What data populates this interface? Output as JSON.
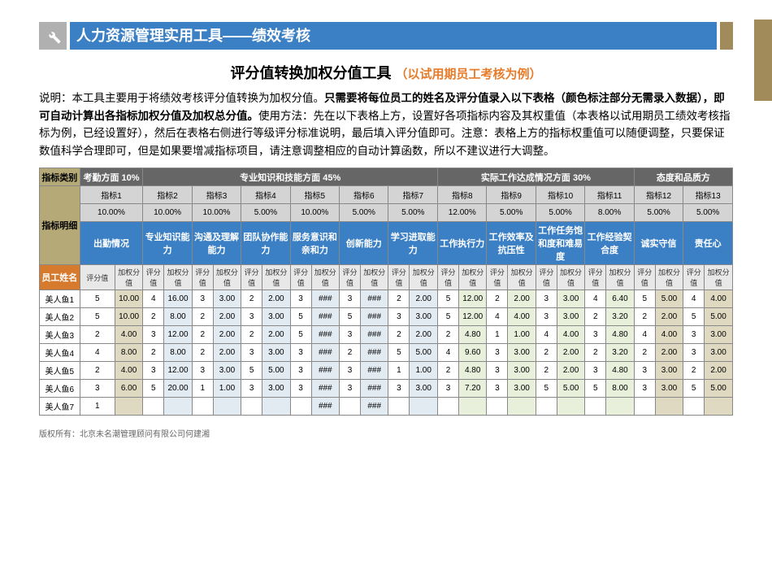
{
  "header": {
    "title": "人力资源管理实用工具——绩效考核",
    "subtitle_main": "评分值转换加权分值工具",
    "subtitle_note": "（以试用期员工考核为例）"
  },
  "description": {
    "prefix": "说明：本工具主要用于将绩效考核评分值转换为加权分值。",
    "bold": "只需要将每位员工的姓名及评分值录入以下表格（颜色标注部分无需录入数据），即可自动计算出各指标加权分值及加权总分值。",
    "suffix": "使用方法：先在以下表格上方，设置好各项指标内容及其权重值（本表格以试用期员工绩效考核指标为例，已经设置好），然后在表格右侧进行等级评分标准说明，最后填入评分值即可。注意：表格上方的指标权重值可以随便调整，只要保证数值科学合理即可，但是如果要增减指标项目，请注意调整相应的自动计算函数，所以不建议进行大调整。"
  },
  "groups": [
    {
      "label": "考勤方面 10%",
      "span": 2
    },
    {
      "label": "专业知识和技能方面 45%",
      "span": 12
    },
    {
      "label": "实际工作达成情况方面  30%",
      "span": 8
    },
    {
      "label": "态度和品质方",
      "span": 4
    }
  ],
  "row_labels": {
    "category": "指标类别",
    "detail": "指标明细",
    "name": "员工姓名"
  },
  "indicators": [
    {
      "code": "指标1",
      "weight": "10.00%",
      "name": "出勤情况"
    },
    {
      "code": "指标2",
      "weight": "10.00%",
      "name": "专业知识能力"
    },
    {
      "code": "指标3",
      "weight": "10.00%",
      "name": "沟通及理解能力"
    },
    {
      "code": "指标4",
      "weight": "5.00%",
      "name": "团队协作能力"
    },
    {
      "code": "指标5",
      "weight": "10.00%",
      "name": "服务意识和亲和力"
    },
    {
      "code": "指标6",
      "weight": "5.00%",
      "name": "创新能力"
    },
    {
      "code": "指标7",
      "weight": "5.00%",
      "name": "学习进取能力"
    },
    {
      "code": "指标8",
      "weight": "12.00%",
      "name": "工作执行力"
    },
    {
      "code": "指标9",
      "weight": "5.00%",
      "name": "工作效率及抗压性"
    },
    {
      "code": "指标10",
      "weight": "5.00%",
      "name": "工作任务饱和度和难易度"
    },
    {
      "code": "指标11",
      "weight": "8.00%",
      "name": "工作经验契合度"
    },
    {
      "code": "指标12",
      "weight": "5.00%",
      "name": "诚实守信"
    },
    {
      "code": "指标13",
      "weight": "5.00%",
      "name": "责任心"
    }
  ],
  "sub": {
    "score": "评分值",
    "weighted": "加权分值"
  },
  "employees": [
    {
      "name": "美人鱼1",
      "cells": [
        [
          "5",
          "10.00"
        ],
        [
          "4",
          "16.00"
        ],
        [
          "3",
          "3.00"
        ],
        [
          "2",
          "2.00"
        ],
        [
          "3",
          "###"
        ],
        [
          "3",
          "###"
        ],
        [
          "2",
          "2.00"
        ],
        [
          "5",
          "12.00"
        ],
        [
          "2",
          "2.00"
        ],
        [
          "3",
          "3.00"
        ],
        [
          "4",
          "6.40"
        ],
        [
          "5",
          "5.00"
        ],
        [
          "4",
          "4.00"
        ]
      ]
    },
    {
      "name": "美人鱼2",
      "cells": [
        [
          "5",
          "10.00"
        ],
        [
          "2",
          "8.00"
        ],
        [
          "2",
          "2.00"
        ],
        [
          "3",
          "3.00"
        ],
        [
          "5",
          "###"
        ],
        [
          "5",
          "###"
        ],
        [
          "3",
          "3.00"
        ],
        [
          "5",
          "12.00"
        ],
        [
          "4",
          "4.00"
        ],
        [
          "3",
          "3.00"
        ],
        [
          "2",
          "3.20"
        ],
        [
          "2",
          "2.00"
        ],
        [
          "5",
          "5.00"
        ]
      ]
    },
    {
      "name": "美人鱼3",
      "cells": [
        [
          "2",
          "4.00"
        ],
        [
          "3",
          "12.00"
        ],
        [
          "2",
          "2.00"
        ],
        [
          "2",
          "2.00"
        ],
        [
          "5",
          "###"
        ],
        [
          "3",
          "###"
        ],
        [
          "2",
          "2.00"
        ],
        [
          "2",
          "4.80"
        ],
        [
          "1",
          "1.00"
        ],
        [
          "4",
          "4.00"
        ],
        [
          "3",
          "4.80"
        ],
        [
          "4",
          "4.00"
        ],
        [
          "3",
          "3.00"
        ]
      ]
    },
    {
      "name": "美人鱼4",
      "cells": [
        [
          "4",
          "8.00"
        ],
        [
          "2",
          "8.00"
        ],
        [
          "2",
          "2.00"
        ],
        [
          "3",
          "3.00"
        ],
        [
          "3",
          "###"
        ],
        [
          "2",
          "###"
        ],
        [
          "5",
          "5.00"
        ],
        [
          "4",
          "9.60"
        ],
        [
          "3",
          "3.00"
        ],
        [
          "2",
          "2.00"
        ],
        [
          "2",
          "3.20"
        ],
        [
          "2",
          "2.00"
        ],
        [
          "3",
          "3.00"
        ]
      ]
    },
    {
      "name": "美人鱼5",
      "cells": [
        [
          "2",
          "4.00"
        ],
        [
          "3",
          "12.00"
        ],
        [
          "3",
          "3.00"
        ],
        [
          "5",
          "5.00"
        ],
        [
          "3",
          "###"
        ],
        [
          "3",
          "###"
        ],
        [
          "1",
          "1.00"
        ],
        [
          "2",
          "4.80"
        ],
        [
          "3",
          "3.00"
        ],
        [
          "2",
          "2.00"
        ],
        [
          "3",
          "4.80"
        ],
        [
          "3",
          "3.00"
        ],
        [
          "2",
          "2.00"
        ]
      ]
    },
    {
      "name": "美人鱼6",
      "cells": [
        [
          "3",
          "6.00"
        ],
        [
          "5",
          "20.00"
        ],
        [
          "1",
          "1.00"
        ],
        [
          "3",
          "3.00"
        ],
        [
          "3",
          "###"
        ],
        [
          "3",
          "###"
        ],
        [
          "3",
          "3.00"
        ],
        [
          "3",
          "7.20"
        ],
        [
          "3",
          "3.00"
        ],
        [
          "5",
          "5.00"
        ],
        [
          "5",
          "8.00"
        ],
        [
          "3",
          "3.00"
        ],
        [
          "5",
          "5.00"
        ]
      ]
    },
    {
      "name": "美人鱼7",
      "cells": [
        [
          "1",
          ""
        ],
        [
          "",
          ""
        ],
        [
          "",
          ""
        ],
        [
          "",
          ""
        ],
        [
          "",
          "###"
        ],
        [
          "",
          "###"
        ],
        [
          "",
          ""
        ],
        [
          "",
          ""
        ],
        [
          "",
          ""
        ],
        [
          "",
          ""
        ],
        [
          "",
          ""
        ],
        [
          "",
          ""
        ],
        [
          "",
          ""
        ]
      ]
    }
  ],
  "footer": "版权所有：北京未名潮管理顾问有限公司何建湘",
  "colors": {
    "blue": "#3b7fc4",
    "gold": "#a18b5a",
    "orange": "#e87b2a",
    "tan": "#b5a978"
  }
}
